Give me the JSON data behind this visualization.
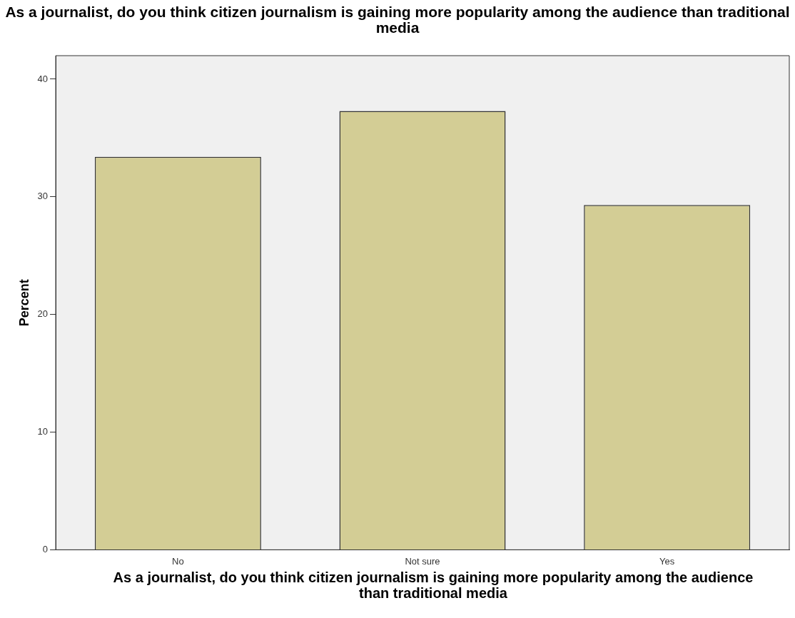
{
  "chart_data": {
    "type": "bar",
    "title": "As a journalist, do you think citizen journalism is gaining more popularity among the audience than traditional media",
    "xlabel": "As a journalist, do you think citizen journalism is gaining more popularity among the audience than traditional media",
    "ylabel": "Percent",
    "categories": [
      "No",
      "Not sure",
      "Yes"
    ],
    "values": [
      33.4,
      37.3,
      29.3
    ],
    "color": "#d3cd95",
    "ylim": [
      0,
      42
    ],
    "yticks": [
      0,
      10,
      20,
      30,
      40
    ],
    "grid": false,
    "legend": false
  }
}
